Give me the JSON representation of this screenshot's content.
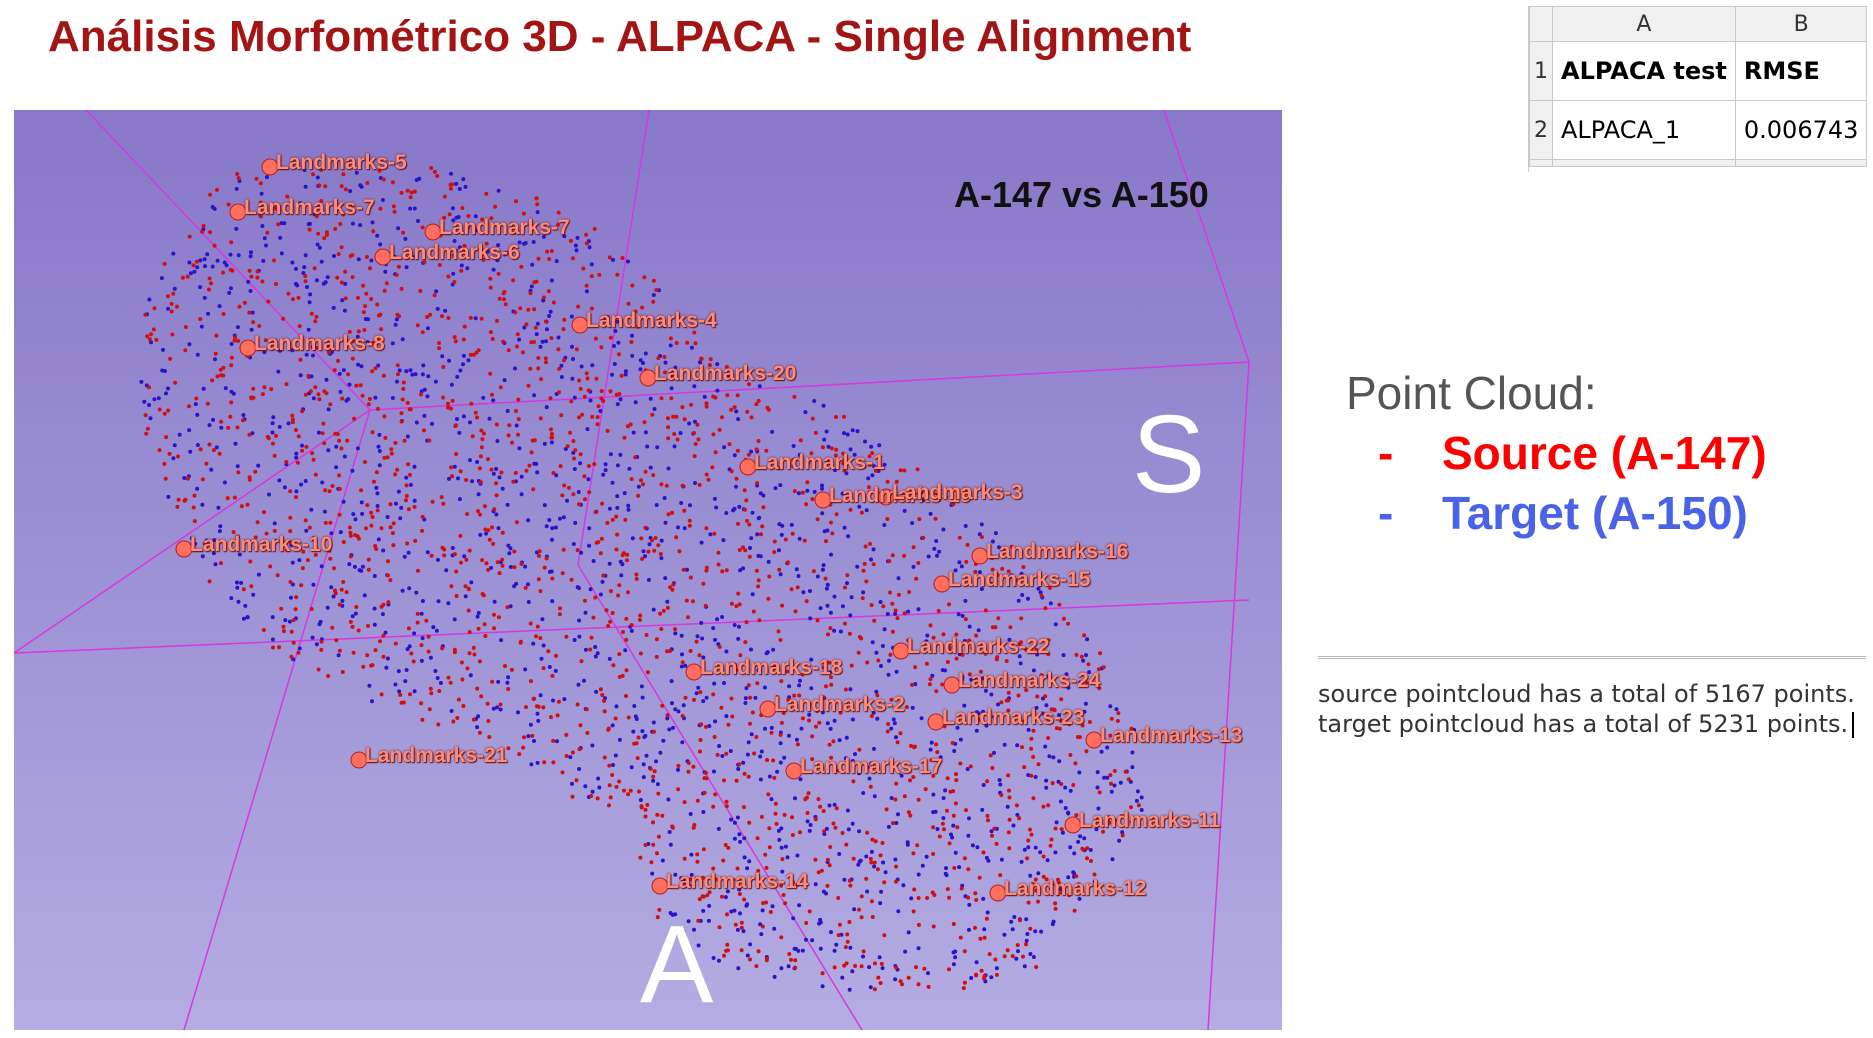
{
  "title": "Análisis Morfométrico 3D - ALPACA - Single Alignment",
  "viewer": {
    "comparison_label": "A-147 vs A-150",
    "orientation_labels": {
      "superior": "S",
      "anterior": "A"
    },
    "landmarks": [
      "Landmarks-5",
      "Landmarks-7",
      "Landmarks-7",
      "Landmarks-6",
      "Landmarks-4",
      "Landmarks-8",
      "Landmarks-20",
      "Landmarks-1",
      "Landmarks-19",
      "Landmarks-3",
      "Landmarks-10",
      "Landmarks-16",
      "Landmarks-15",
      "Landmarks-22",
      "Landmarks-18",
      "Landmarks-24",
      "Landmarks-2",
      "Landmarks-23",
      "Landmarks-13",
      "Landmarks-21",
      "Landmarks-17",
      "Landmarks-11",
      "Landmarks-14",
      "Landmarks-12"
    ],
    "source_color": "#d01010",
    "target_color": "#2a14c8",
    "box_color": "#d837e0"
  },
  "spreadsheet": {
    "column_headers": [
      "A",
      "B"
    ],
    "row_numbers": [
      "1",
      "2"
    ],
    "rows": [
      [
        "ALPACA test",
        "RMSE"
      ],
      [
        "ALPACA_1",
        "0.006743"
      ]
    ]
  },
  "legend": {
    "title": "Point Cloud:",
    "items": [
      {
        "dash": "-",
        "label": "Source (A-147)",
        "color": "#ff0000"
      },
      {
        "dash": "-",
        "label": "Target (A-150)",
        "color": "#4a63e6"
      }
    ]
  },
  "console": {
    "lines": [
      "source pointcloud has a total of 5167 points.",
      "target pointcloud has a total of 5231 points."
    ]
  }
}
